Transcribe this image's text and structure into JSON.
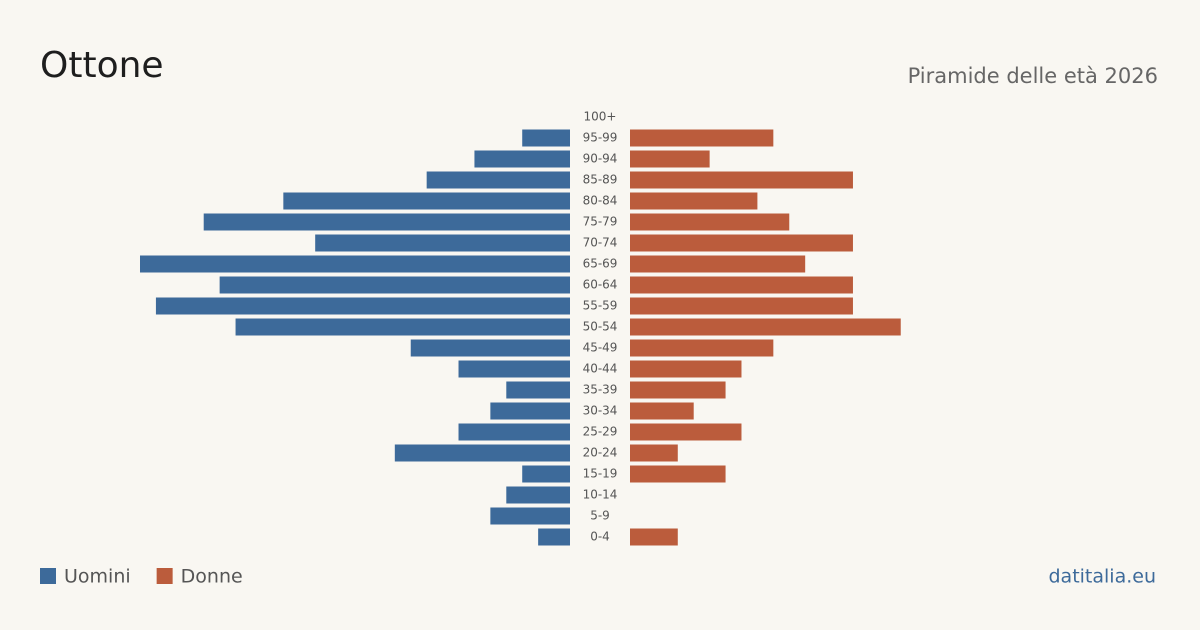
{
  "chart_data": {
    "type": "pyramid",
    "title": "Ottone",
    "subtitle": "Piramide delle età 2026",
    "source": "datitalia.eu",
    "categories": [
      "100+",
      "95-99",
      "90-94",
      "85-89",
      "80-84",
      "75-79",
      "70-74",
      "65-69",
      "60-64",
      "55-59",
      "50-54",
      "45-49",
      "40-44",
      "35-39",
      "30-34",
      "25-29",
      "20-24",
      "15-19",
      "10-14",
      "5-9",
      "0-4"
    ],
    "series": [
      {
        "name": "Uomini",
        "color": "#3d6a9a",
        "values": [
          0,
          3,
          6,
          9,
          18,
          23,
          16,
          27,
          22,
          26,
          21,
          10,
          7,
          4,
          5,
          7,
          11,
          3,
          4,
          5,
          2
        ]
      },
      {
        "name": "Donne",
        "color": "#bb5c3c",
        "values": [
          0,
          9,
          5,
          14,
          8,
          10,
          14,
          11,
          14,
          14,
          17,
          9,
          7,
          6,
          4,
          7,
          3,
          6,
          0,
          0,
          3
        ]
      }
    ]
  }
}
